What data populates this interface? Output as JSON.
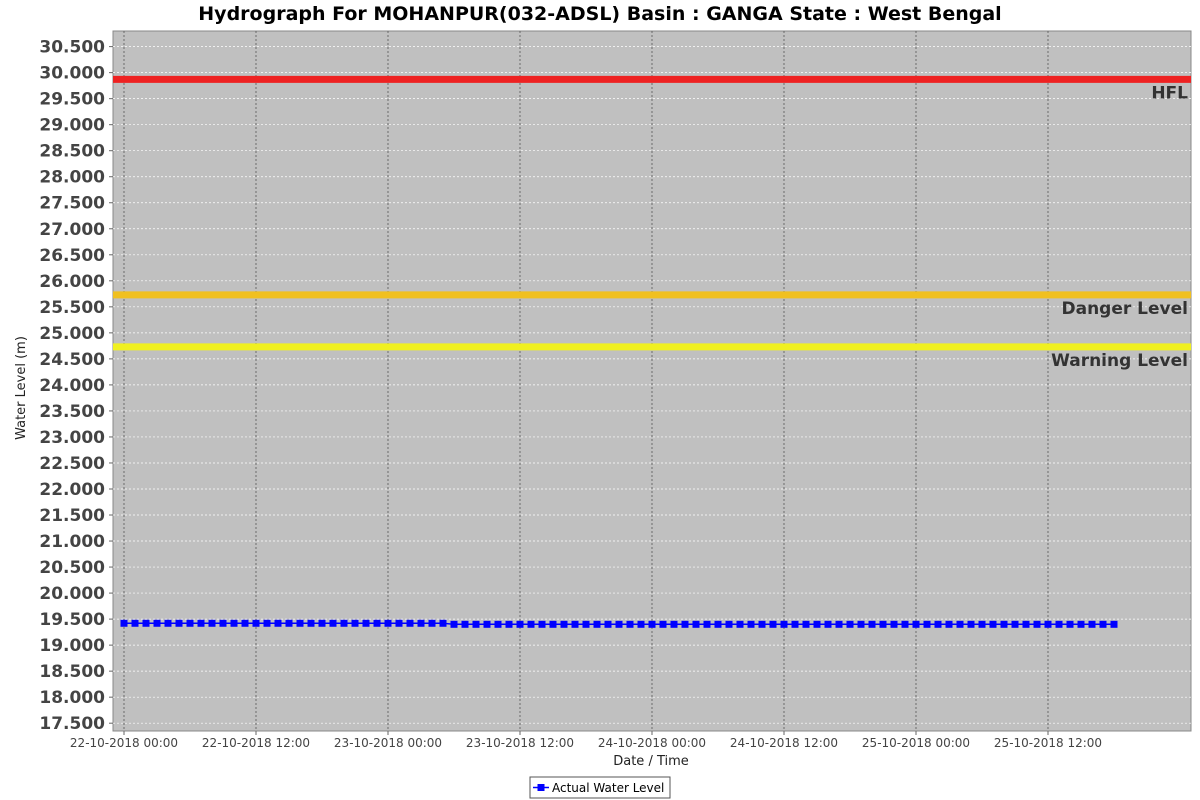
{
  "chart_data": {
    "type": "line",
    "title": "Hydrograph For MOHANPUR(032-ADSL) Basin : GANGA State : West Bengal",
    "xlabel": "Date / Time",
    "ylabel": "Water Level (m)",
    "ylim": [
      17.35,
      30.8
    ],
    "xlim": [
      "2018-10-21 23:00",
      "2018-10-26 01:00"
    ],
    "y_ticks": [
      "17.500",
      "18.000",
      "18.500",
      "19.000",
      "19.500",
      "20.000",
      "20.500",
      "21.000",
      "21.500",
      "22.000",
      "22.500",
      "23.000",
      "23.500",
      "24.000",
      "24.500",
      "25.000",
      "25.500",
      "26.000",
      "26.500",
      "27.000",
      "27.500",
      "28.000",
      "28.500",
      "29.000",
      "29.500",
      "30.000",
      "30.500"
    ],
    "x_ticks": [
      {
        "t": "2018-10-22 00:00",
        "label": "22-10-2018 00:00"
      },
      {
        "t": "2018-10-22 12:00",
        "label": "22-10-2018 12:00"
      },
      {
        "t": "2018-10-23 00:00",
        "label": "23-10-2018 00:00"
      },
      {
        "t": "2018-10-23 12:00",
        "label": "23-10-2018 12:00"
      },
      {
        "t": "2018-10-24 00:00",
        "label": "24-10-2018 00:00"
      },
      {
        "t": "2018-10-24 12:00",
        "label": "24-10-2018 12:00"
      },
      {
        "t": "2018-10-25 00:00",
        "label": "25-10-2018 00:00"
      },
      {
        "t": "2018-10-25 12:00",
        "label": "25-10-2018 12:00"
      }
    ],
    "grid": true,
    "legend_position": "bottom-center",
    "reference_lines": [
      {
        "name": "HFL",
        "value": 29.87,
        "color": "#ee2222"
      },
      {
        "name": "Danger Level",
        "value": 25.73,
        "color": "#f0c020"
      },
      {
        "name": "Warning Level",
        "value": 24.73,
        "color": "#f0f020"
      }
    ],
    "series": [
      {
        "name": "Actual Water Level",
        "color": "#0000ff",
        "start": "2018-10-22 00:00",
        "interval_hours": 1,
        "values": [
          19.42,
          19.42,
          19.42,
          19.42,
          19.42,
          19.42,
          19.42,
          19.42,
          19.42,
          19.42,
          19.42,
          19.42,
          19.42,
          19.42,
          19.42,
          19.42,
          19.42,
          19.42,
          19.42,
          19.42,
          19.42,
          19.42,
          19.42,
          19.42,
          19.42,
          19.42,
          19.42,
          19.42,
          19.42,
          19.42,
          19.4,
          19.4,
          19.4,
          19.4,
          19.4,
          19.4,
          19.4,
          19.4,
          19.4,
          19.4,
          19.4,
          19.4,
          19.4,
          19.4,
          19.4,
          19.4,
          19.4,
          19.4,
          19.4,
          19.4,
          19.4,
          19.4,
          19.4,
          19.4,
          19.4,
          19.4,
          19.4,
          19.4,
          19.4,
          19.4,
          19.4,
          19.4,
          19.4,
          19.4,
          19.4,
          19.4,
          19.4,
          19.4,
          19.4,
          19.4,
          19.4,
          19.4,
          19.4,
          19.4,
          19.4,
          19.4,
          19.4,
          19.4,
          19.4,
          19.4,
          19.4,
          19.4,
          19.4,
          19.4,
          19.4,
          19.4,
          19.4,
          19.4,
          19.4,
          19.4,
          19.4
        ]
      }
    ]
  }
}
